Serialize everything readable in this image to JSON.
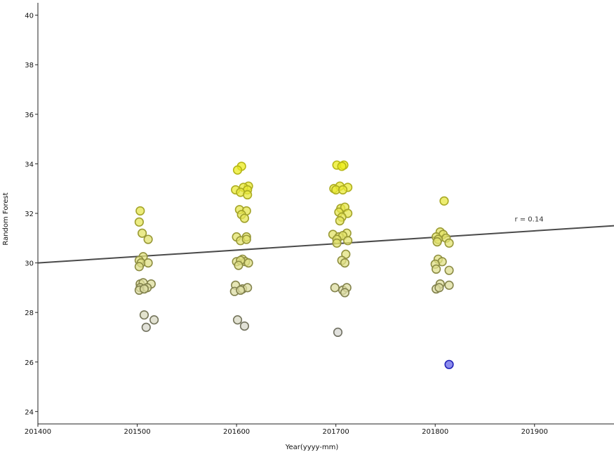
{
  "chart_data": {
    "type": "scatter",
    "title": "",
    "xlabel": "Year(yyyy-mm)",
    "ylabel": "Random Forest",
    "xlim": [
      201400,
      201980
    ],
    "ylim": [
      23.5,
      40.5
    ],
    "x_ticks": [
      201400,
      201500,
      201600,
      201700,
      201800,
      201900
    ],
    "y_ticks": [
      24,
      26,
      28,
      30,
      32,
      34,
      36,
      38,
      40
    ],
    "grid": false,
    "legend": "none",
    "regression": {
      "x": [
        201400,
        201980
      ],
      "y": [
        30.0,
        31.5
      ],
      "label": "r = 0.14",
      "label_x": 201880,
      "label_y": 31.5
    },
    "point_color_scale": {
      "low": "#d6d6d6",
      "high": "#ecec1a",
      "outlier": "#8c8ced"
    },
    "points": [
      {
        "x": 201503,
        "y": 32.1
      },
      {
        "x": 201502,
        "y": 31.65
      },
      {
        "x": 201505,
        "y": 31.2
      },
      {
        "x": 201511,
        "y": 30.95
      },
      {
        "x": 201506,
        "y": 30.25
      },
      {
        "x": 201502,
        "y": 30.1
      },
      {
        "x": 201504,
        "y": 30.0
      },
      {
        "x": 201511,
        "y": 30.0
      },
      {
        "x": 201502,
        "y": 29.85
      },
      {
        "x": 201503,
        "y": 29.15
      },
      {
        "x": 201506,
        "y": 29.2
      },
      {
        "x": 201514,
        "y": 29.15
      },
      {
        "x": 201503,
        "y": 29.0
      },
      {
        "x": 201510,
        "y": 29.0
      },
      {
        "x": 201502,
        "y": 28.9
      },
      {
        "x": 201507,
        "y": 28.95
      },
      {
        "x": 201507,
        "y": 27.9
      },
      {
        "x": 201517,
        "y": 27.7
      },
      {
        "x": 201509,
        "y": 27.4
      },
      {
        "x": 201605,
        "y": 33.9
      },
      {
        "x": 201601,
        "y": 33.75
      },
      {
        "x": 201612,
        "y": 33.1
      },
      {
        "x": 201599,
        "y": 32.95
      },
      {
        "x": 201607,
        "y": 33.05
      },
      {
        "x": 201611,
        "y": 32.95
      },
      {
        "x": 201604,
        "y": 32.85
      },
      {
        "x": 201611,
        "y": 32.75
      },
      {
        "x": 201603,
        "y": 32.15
      },
      {
        "x": 201610,
        "y": 32.1
      },
      {
        "x": 201605,
        "y": 31.95
      },
      {
        "x": 201608,
        "y": 31.8
      },
      {
        "x": 201600,
        "y": 31.05
      },
      {
        "x": 201610,
        "y": 31.05
      },
      {
        "x": 201604,
        "y": 30.9
      },
      {
        "x": 201610,
        "y": 30.95
      },
      {
        "x": 201606,
        "y": 30.15
      },
      {
        "x": 201600,
        "y": 30.05
      },
      {
        "x": 201609,
        "y": 30.05
      },
      {
        "x": 201612,
        "y": 30.0
      },
      {
        "x": 201604,
        "y": 30.1
      },
      {
        "x": 201602,
        "y": 29.9
      },
      {
        "x": 201599,
        "y": 29.1
      },
      {
        "x": 201606,
        "y": 28.95
      },
      {
        "x": 201611,
        "y": 29.0
      },
      {
        "x": 201598,
        "y": 28.85
      },
      {
        "x": 201604,
        "y": 28.9
      },
      {
        "x": 201601,
        "y": 27.7
      },
      {
        "x": 201608,
        "y": 27.45
      },
      {
        "x": 201701,
        "y": 33.95
      },
      {
        "x": 201708,
        "y": 33.95
      },
      {
        "x": 201706,
        "y": 33.9
      },
      {
        "x": 201698,
        "y": 33.0
      },
      {
        "x": 201704,
        "y": 33.1
      },
      {
        "x": 201712,
        "y": 33.05
      },
      {
        "x": 201700,
        "y": 32.95
      },
      {
        "x": 201707,
        "y": 32.95
      },
      {
        "x": 201705,
        "y": 32.2
      },
      {
        "x": 201709,
        "y": 32.25
      },
      {
        "x": 201703,
        "y": 32.05
      },
      {
        "x": 201712,
        "y": 32.0
      },
      {
        "x": 201706,
        "y": 31.85
      },
      {
        "x": 201704,
        "y": 31.7
      },
      {
        "x": 201697,
        "y": 31.15
      },
      {
        "x": 201711,
        "y": 31.2
      },
      {
        "x": 201703,
        "y": 31.05
      },
      {
        "x": 201707,
        "y": 31.1
      },
      {
        "x": 201701,
        "y": 30.95
      },
      {
        "x": 201712,
        "y": 30.9
      },
      {
        "x": 201701,
        "y": 30.8
      },
      {
        "x": 201710,
        "y": 30.35
      },
      {
        "x": 201706,
        "y": 30.1
      },
      {
        "x": 201709,
        "y": 30.0
      },
      {
        "x": 201699,
        "y": 29.0
      },
      {
        "x": 201707,
        "y": 28.9
      },
      {
        "x": 201711,
        "y": 29.0
      },
      {
        "x": 201709,
        "y": 28.8
      },
      {
        "x": 201702,
        "y": 27.2
      },
      {
        "x": 201814,
        "y": 25.9,
        "outlier": true
      },
      {
        "x": 201809,
        "y": 32.5
      },
      {
        "x": 201805,
        "y": 31.25
      },
      {
        "x": 201808,
        "y": 31.15
      },
      {
        "x": 201801,
        "y": 31.05
      },
      {
        "x": 201811,
        "y": 31.0
      },
      {
        "x": 201803,
        "y": 30.95
      },
      {
        "x": 201802,
        "y": 30.85
      },
      {
        "x": 201814,
        "y": 30.8
      },
      {
        "x": 201803,
        "y": 30.15
      },
      {
        "x": 201807,
        "y": 30.05
      },
      {
        "x": 201800,
        "y": 29.95
      },
      {
        "x": 201801,
        "y": 29.75
      },
      {
        "x": 201814,
        "y": 29.7
      },
      {
        "x": 201805,
        "y": 29.15
      },
      {
        "x": 201814,
        "y": 29.1
      },
      {
        "x": 201801,
        "y": 28.95
      },
      {
        "x": 201804,
        "y": 29.0
      }
    ]
  }
}
